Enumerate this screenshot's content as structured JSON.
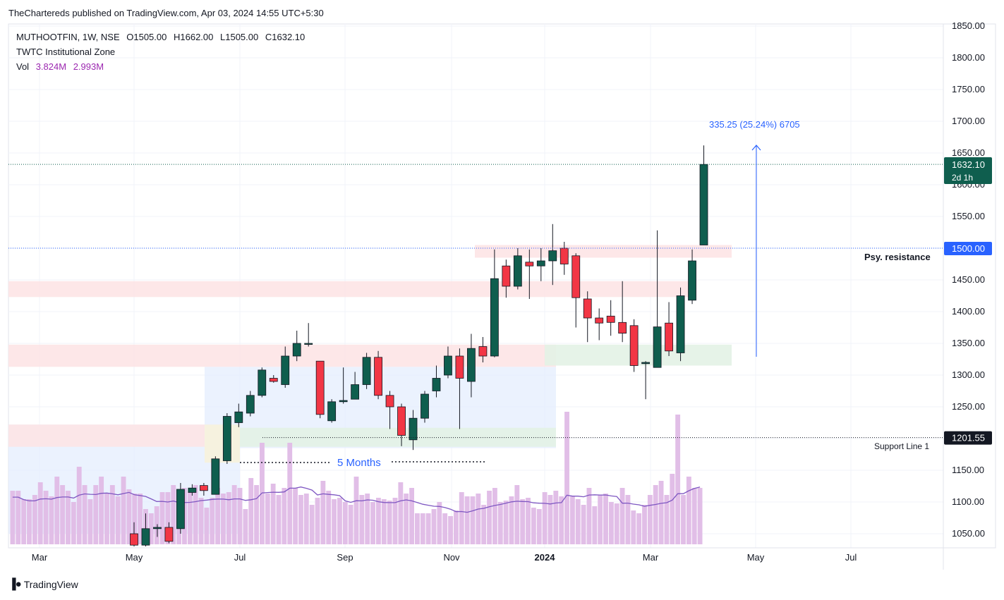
{
  "header": {
    "published": "TheChartereds published on TradingView.com, Apr 03, 2024 14:55 UTC+5:30"
  },
  "legend": {
    "symbol": "MUTHOOTFIN, 1W, NSE",
    "open": "O1505.00",
    "high": "H1662.00",
    "low": "L1505.00",
    "close": "C1632.10",
    "indicator": "TWTC Institutional Zone",
    "vol_label": "Vol",
    "vol_1": "3.824M",
    "vol_2": "2.993M"
  },
  "footer": {
    "brand": "TradingView"
  },
  "colors": {
    "up": "#0f5e4e",
    "down": "#f23645",
    "volume": "#e1bee7",
    "vol_ma": "#7e57c2",
    "measure": "#2962ff",
    "price_tag": "#0f5e4e",
    "level_tag": "#2962ff",
    "resistance_zone": "#fde4e6",
    "support_zone": "#e3f2e5",
    "range_zone": "#e3ecfd"
  },
  "chart_data": {
    "type": "candlestick",
    "symbol": "MUTHOOTFIN",
    "interval": "1W",
    "exchange": "NSE",
    "y_axis": {
      "ticks": [
        "1850.00",
        "1800.00",
        "1750.00",
        "1700.00",
        "1650.00",
        "1600.00",
        "1550.00",
        "1500.00",
        "1450.00",
        "1400.00",
        "1350.00",
        "1300.00",
        "1250.00",
        "1200.00",
        "1150.00",
        "1100.00",
        "1050.00"
      ],
      "range": [
        1035,
        1855
      ]
    },
    "x_axis": {
      "ticks": [
        "Mar",
        "May",
        "Jul",
        "Sep",
        "Nov",
        "2024",
        "Mar",
        "May",
        "Jul"
      ]
    },
    "candles": [
      {
        "date": "2023-05-01",
        "o": 1050,
        "h": 1068,
        "l": 1030,
        "c": 1032
      },
      {
        "date": "2023-05-08",
        "o": 1032,
        "h": 1082,
        "l": 1030,
        "c": 1058
      },
      {
        "date": "2023-05-15",
        "o": 1058,
        "h": 1065,
        "l": 1045,
        "c": 1060
      },
      {
        "date": "2023-05-22",
        "o": 1060,
        "h": 1068,
        "l": 1035,
        "c": 1038
      },
      {
        "date": "2023-05-29",
        "o": 1058,
        "h": 1130,
        "l": 1050,
        "c": 1120
      },
      {
        "date": "2023-06-05",
        "o": 1115,
        "h": 1128,
        "l": 1110,
        "c": 1122
      },
      {
        "date": "2023-06-12",
        "o": 1126,
        "h": 1130,
        "l": 1110,
        "c": 1118
      },
      {
        "date": "2023-06-19",
        "o": 1112,
        "h": 1172,
        "l": 1112,
        "c": 1168
      },
      {
        "date": "2023-06-26",
        "o": 1165,
        "h": 1240,
        "l": 1160,
        "c": 1235
      },
      {
        "date": "2023-07-03",
        "o": 1225,
        "h": 1255,
        "l": 1218,
        "c": 1242
      },
      {
        "date": "2023-07-10",
        "o": 1240,
        "h": 1275,
        "l": 1235,
        "c": 1268
      },
      {
        "date": "2023-07-17",
        "o": 1268,
        "h": 1312,
        "l": 1265,
        "c": 1308
      },
      {
        "date": "2023-07-24",
        "o": 1295,
        "h": 1300,
        "l": 1288,
        "c": 1290
      },
      {
        "date": "2023-07-31",
        "o": 1285,
        "h": 1345,
        "l": 1280,
        "c": 1330
      },
      {
        "date": "2023-08-07",
        "o": 1330,
        "h": 1370,
        "l": 1322,
        "c": 1350
      },
      {
        "date": "2023-08-14",
        "o": 1350,
        "h": 1382,
        "l": 1345,
        "c": 1350
      },
      {
        "date": "2023-08-21",
        "o": 1322,
        "h": 1322,
        "l": 1232,
        "c": 1238
      },
      {
        "date": "2023-08-28",
        "o": 1228,
        "h": 1262,
        "l": 1225,
        "c": 1258
      },
      {
        "date": "2023-09-04",
        "o": 1258,
        "h": 1312,
        "l": 1255,
        "c": 1260
      },
      {
        "date": "2023-09-11",
        "o": 1262,
        "h": 1305,
        "l": 1262,
        "c": 1285
      },
      {
        "date": "2023-09-18",
        "o": 1285,
        "h": 1335,
        "l": 1278,
        "c": 1328
      },
      {
        "date": "2023-09-25",
        "o": 1328,
        "h": 1338,
        "l": 1262,
        "c": 1268
      },
      {
        "date": "2023-10-02",
        "o": 1268,
        "h": 1275,
        "l": 1215,
        "c": 1250
      },
      {
        "date": "2023-10-09",
        "o": 1250,
        "h": 1255,
        "l": 1188,
        "c": 1205
      },
      {
        "date": "2023-10-16",
        "o": 1198,
        "h": 1245,
        "l": 1182,
        "c": 1232
      },
      {
        "date": "2023-10-23",
        "o": 1232,
        "h": 1275,
        "l": 1225,
        "c": 1270
      },
      {
        "date": "2023-10-30",
        "o": 1275,
        "h": 1315,
        "l": 1265,
        "c": 1295
      },
      {
        "date": "2023-11-06",
        "o": 1300,
        "h": 1345,
        "l": 1295,
        "c": 1330
      },
      {
        "date": "2023-11-13",
        "o": 1330,
        "h": 1342,
        "l": 1215,
        "c": 1295
      },
      {
        "date": "2023-11-20",
        "o": 1290,
        "h": 1365,
        "l": 1265,
        "c": 1342
      },
      {
        "date": "2023-11-27",
        "o": 1345,
        "h": 1360,
        "l": 1320,
        "c": 1330
      },
      {
        "date": "2023-12-04",
        "o": 1330,
        "h": 1498,
        "l": 1328,
        "c": 1452
      },
      {
        "date": "2023-12-11",
        "o": 1472,
        "h": 1482,
        "l": 1422,
        "c": 1440
      },
      {
        "date": "2023-12-18",
        "o": 1440,
        "h": 1500,
        "l": 1435,
        "c": 1488
      },
      {
        "date": "2023-12-25",
        "o": 1478,
        "h": 1498,
        "l": 1420,
        "c": 1472
      },
      {
        "date": "2024-01-01",
        "o": 1472,
        "h": 1500,
        "l": 1448,
        "c": 1480
      },
      {
        "date": "2024-01-08",
        "o": 1480,
        "h": 1538,
        "l": 1442,
        "c": 1496
      },
      {
        "date": "2024-01-15",
        "o": 1500,
        "h": 1510,
        "l": 1458,
        "c": 1475
      },
      {
        "date": "2024-01-22",
        "o": 1488,
        "h": 1492,
        "l": 1375,
        "c": 1422
      },
      {
        "date": "2024-01-29",
        "o": 1420,
        "h": 1432,
        "l": 1352,
        "c": 1390
      },
      {
        "date": "2024-02-05",
        "o": 1390,
        "h": 1405,
        "l": 1355,
        "c": 1382
      },
      {
        "date": "2024-02-12",
        "o": 1393,
        "h": 1418,
        "l": 1362,
        "c": 1383
      },
      {
        "date": "2024-02-19",
        "o": 1383,
        "h": 1448,
        "l": 1352,
        "c": 1366
      },
      {
        "date": "2024-02-26",
        "o": 1378,
        "h": 1388,
        "l": 1305,
        "c": 1315
      },
      {
        "date": "2024-03-04",
        "o": 1318,
        "h": 1322,
        "l": 1262,
        "c": 1320
      },
      {
        "date": "2024-03-11",
        "o": 1312,
        "h": 1528,
        "l": 1312,
        "c": 1376
      },
      {
        "date": "2024-03-18",
        "o": 1382,
        "h": 1415,
        "l": 1330,
        "c": 1338
      },
      {
        "date": "2024-03-25",
        "o": 1335,
        "h": 1438,
        "l": 1322,
        "c": 1425
      },
      {
        "date": "2024-04-01",
        "o": 1418,
        "h": 1498,
        "l": 1412,
        "c": 1480
      },
      {
        "date": "2024-04-08",
        "o": 1505,
        "h": 1662,
        "l": 1505,
        "c": 1632
      }
    ],
    "volume_bars": [
      38,
      38,
      32,
      32,
      35,
      44,
      38,
      34,
      48,
      42,
      38,
      30,
      55,
      42,
      32,
      42,
      48,
      36,
      42,
      34,
      48,
      39,
      36,
      36,
      25,
      22,
      27,
      37,
      37,
      42,
      35,
      40,
      37,
      42,
      33,
      26,
      33,
      40,
      36,
      37,
      42,
      40,
      25,
      47,
      42,
      72,
      36,
      43,
      35,
      40,
      72,
      40,
      35,
      36,
      28,
      33,
      45,
      38,
      32,
      33,
      30,
      28,
      48,
      35,
      36,
      30,
      33,
      32,
      31,
      33,
      44,
      36,
      40,
      22,
      22,
      22,
      25,
      30,
      22,
      20,
      24,
      37,
      34,
      34,
      36,
      28,
      38,
      40,
      30,
      31,
      34,
      42,
      32,
      33,
      26,
      25,
      37,
      35,
      38,
      34,
      94,
      34,
      32,
      28,
      40,
      27,
      35,
      36,
      30,
      29,
      40,
      35,
      24,
      22,
      28,
      35,
      42,
      45,
      35,
      50,
      92,
      35,
      48,
      40,
      40
    ],
    "last_price": "1632.10",
    "time_to_close": "2d 1h",
    "levels": [
      {
        "label": "Psy. resistance",
        "value": "1500.00"
      },
      {
        "label": "Support Line 1",
        "value": "1201.55"
      }
    ],
    "measure": {
      "text": "335.25 (25.24%) 6705"
    },
    "annotation": "5 Months"
  }
}
